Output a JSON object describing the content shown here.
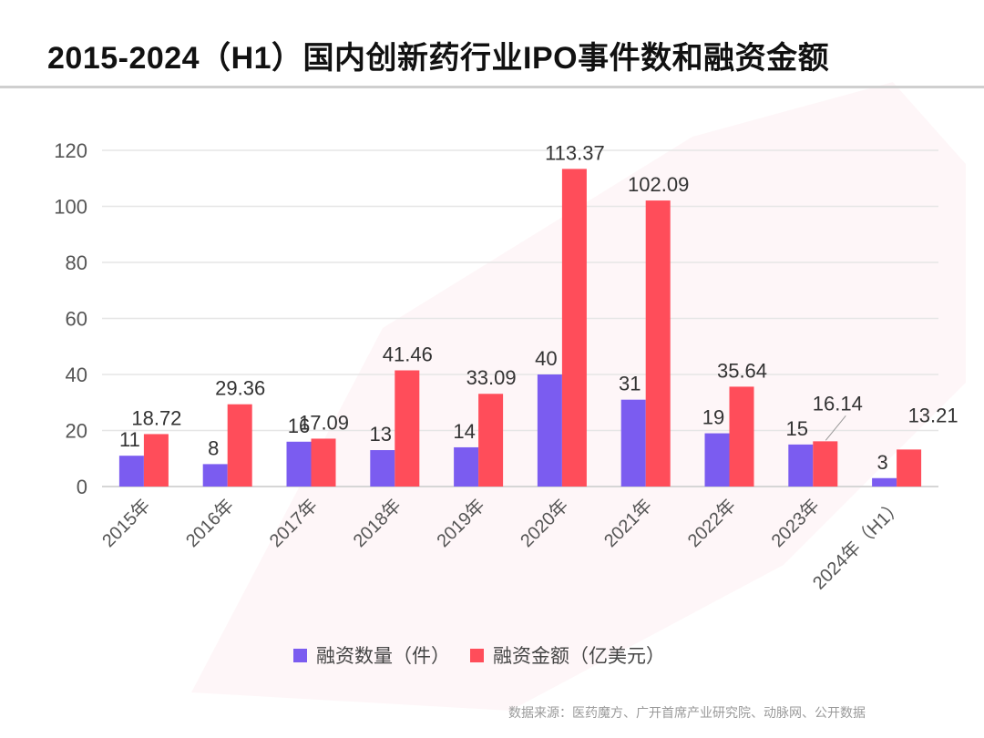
{
  "title": "2015-2024（H1）国内创新药行业IPO事件数和融资金额",
  "source": "数据来源：医药魔方、广开首席产业研究院、动脉网、公开数据",
  "colors": {
    "count": "#7B5CF0",
    "amount": "#FF4D5A",
    "grid": "#e6e6e6",
    "axis_text": "#555555",
    "label_text": "#333333"
  },
  "chart_data": {
    "type": "bar",
    "title": "2015-2024（H1）国内创新药行业IPO事件数和融资金额",
    "xlabel": "",
    "ylabel": "",
    "ylim": [
      0,
      120
    ],
    "yticks": [
      0,
      20,
      40,
      60,
      80,
      100,
      120
    ],
    "grid": true,
    "legend_position": "bottom",
    "categories": [
      "2015年",
      "2016年",
      "2017年",
      "2018年",
      "2019年",
      "2020年",
      "2021年",
      "2022年",
      "2023年",
      "2024年（H1）"
    ],
    "series": [
      {
        "name": "融资数量（件）",
        "values": [
          11,
          8,
          16,
          13,
          14,
          40,
          31,
          19,
          15,
          3
        ]
      },
      {
        "name": "融资金额（亿美元）",
        "values": [
          18.72,
          29.36,
          17.09,
          41.46,
          33.09,
          113.37,
          102.09,
          35.64,
          16.14,
          13.21
        ]
      }
    ]
  }
}
